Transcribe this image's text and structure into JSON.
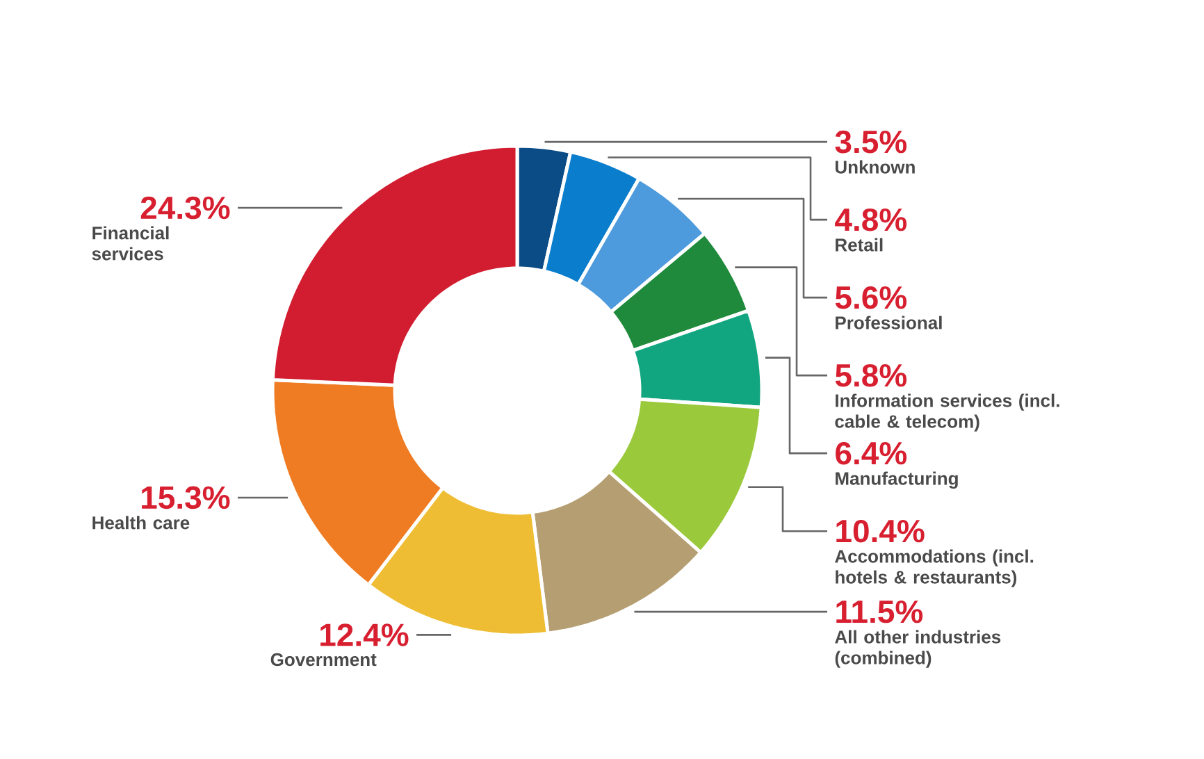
{
  "chart_data": {
    "type": "donut",
    "categories": [
      "Unknown",
      "Retail",
      "Professional",
      "Information services (incl. cable & telecom)",
      "Manufacturing",
      "Accommodations (incl. hotels & restaurants)",
      "All other industries (combined)",
      "Government",
      "Health care",
      "Financial services"
    ],
    "values": [
      3.5,
      4.8,
      5.6,
      5.8,
      6.4,
      10.4,
      11.5,
      12.4,
      15.3,
      24.3
    ],
    "value_labels": [
      "3.5%",
      "4.8%",
      "5.6%",
      "5.8%",
      "6.4%",
      "10.4%",
      "11.5%",
      "12.4%",
      "15.3%",
      "24.3%"
    ],
    "colors": [
      "#0b4c86",
      "#0a7dcc",
      "#4d9bdc",
      "#1f8a3c",
      "#12a680",
      "#9bc93c",
      "#b59f72",
      "#efbd33",
      "#ef7b22",
      "#d21d30"
    ]
  }
}
